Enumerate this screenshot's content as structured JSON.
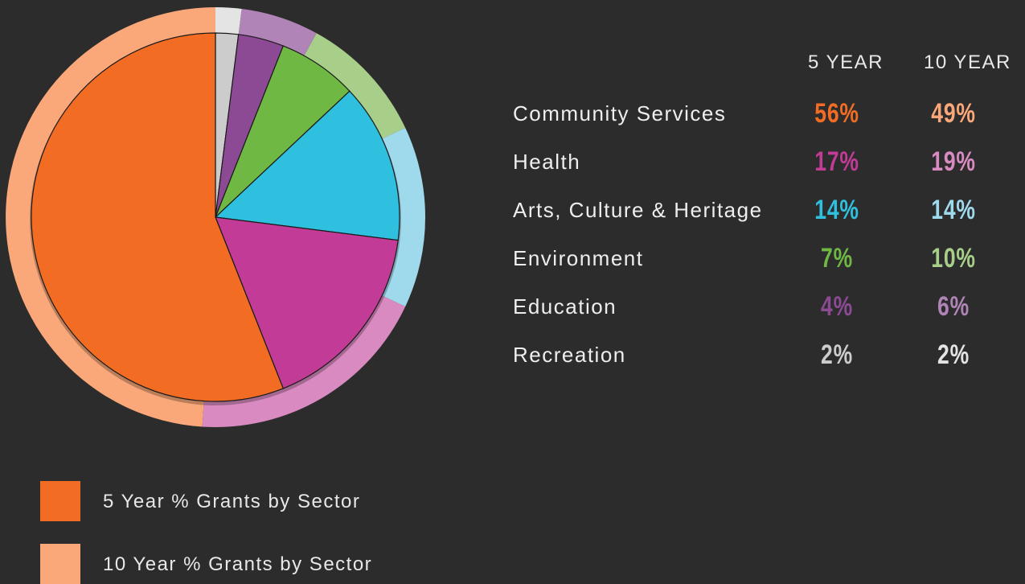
{
  "chart_data": {
    "type": "pie",
    "categories": [
      "Community Services",
      "Health",
      "Arts, Culture & Heritage",
      "Environment",
      "Education",
      "Recreation"
    ],
    "series": [
      {
        "name": "5 Year % Grants by Sector",
        "values": [
          56,
          17,
          14,
          7,
          4,
          2
        ],
        "labels": [
          "56%",
          "17%",
          "14%",
          "7%",
          "4%",
          "2%"
        ],
        "colors": [
          "#f26d23",
          "#c23b96",
          "#2ec0de",
          "#70b844",
          "#8c4a94",
          "#cccccc"
        ]
      },
      {
        "name": "10 Year % Grants by Sector",
        "values": [
          49,
          19,
          14,
          10,
          6,
          2
        ],
        "labels": [
          "49%",
          "19%",
          "14%",
          "10%",
          "6%",
          "2%"
        ],
        "colors": [
          "#faa87a",
          "#d98bc1",
          "#9fd9ec",
          "#a8cf8a",
          "#b184b8",
          "#e4e4e4"
        ]
      }
    ],
    "column_headers": [
      "5 YEAR",
      "10 YEAR"
    ],
    "legend_position": "bottom-left"
  }
}
